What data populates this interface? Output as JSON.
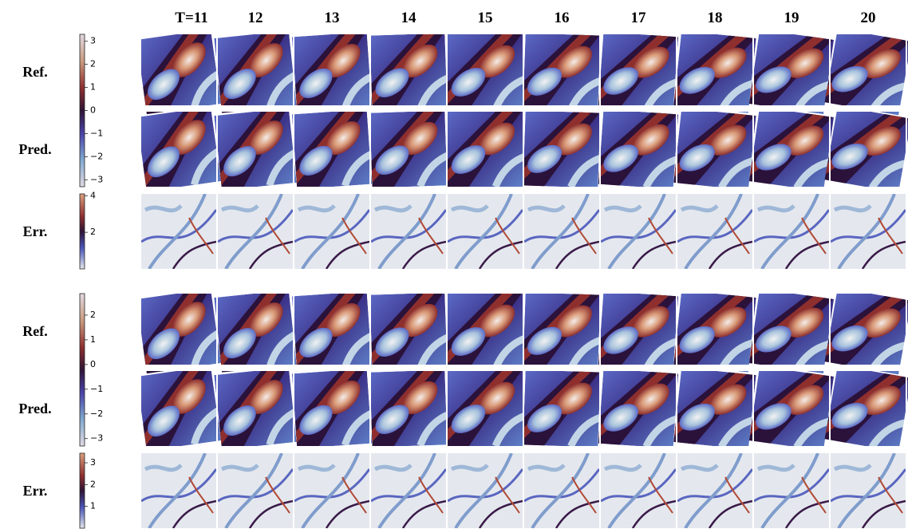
{
  "columns": [
    "T=11",
    "12",
    "13",
    "14",
    "15",
    "16",
    "17",
    "18",
    "19",
    "20"
  ],
  "groups": [
    {
      "rows": [
        "Ref.",
        "Pred.",
        "Err."
      ],
      "colorbars": [
        {
          "lim": [
            -3.3,
            3.3
          ],
          "ticks": [
            3,
            2,
            1,
            0,
            {
              "value": -1,
              "label": "−1"
            },
            {
              "value": -2,
              "label": "−2"
            },
            {
              "value": -3,
              "label": "−3"
            }
          ]
        },
        {
          "lim": [
            0,
            4.1
          ],
          "ticks": [
            4,
            2
          ]
        }
      ]
    },
    {
      "rows": [
        "Ref.",
        "Pred.",
        "Err."
      ],
      "colorbars": [
        {
          "lim": [
            -3.3,
            2.87
          ],
          "ticks": [
            2,
            1,
            0,
            {
              "value": -1,
              "label": "−1"
            },
            {
              "value": -2,
              "label": "−2"
            },
            {
              "value": -3,
              "label": "−3"
            }
          ]
        },
        {
          "lim": [
            0,
            3.44
          ],
          "ticks": [
            3,
            2,
            1
          ]
        }
      ]
    }
  ]
}
